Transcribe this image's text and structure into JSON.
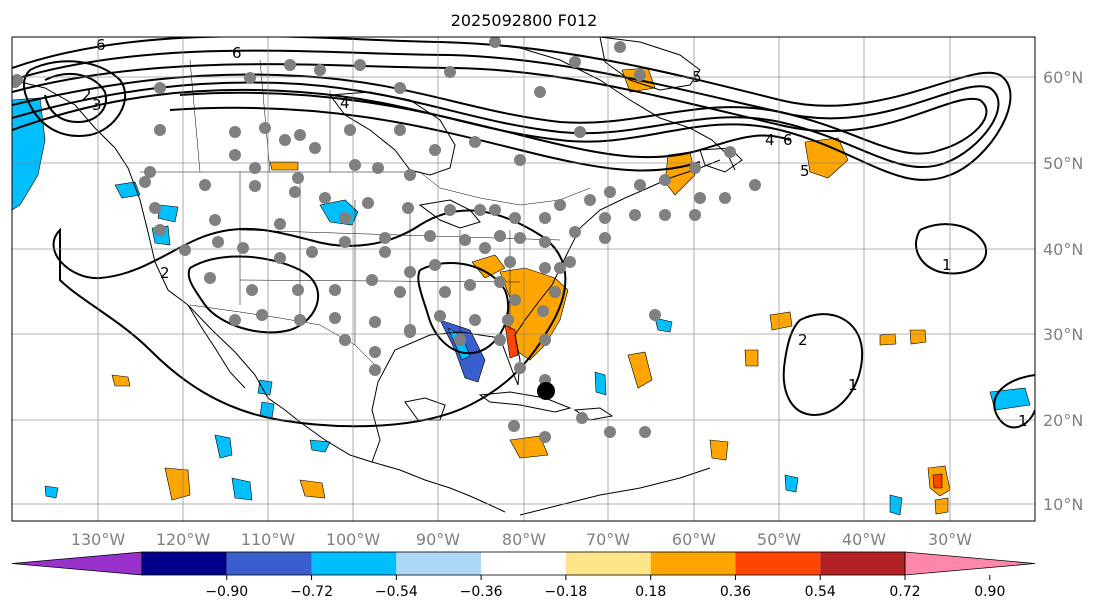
{
  "title": "2025092800 F012",
  "map": {
    "lat_labels": [
      "60°N",
      "50°N",
      "40°N",
      "30°N",
      "20°N",
      "10°N"
    ],
    "lon_labels": [
      "130°W",
      "120°W",
      "110°W",
      "100°W",
      "90°W",
      "80°W",
      "70°W",
      "60°W",
      "50°W",
      "40°W",
      "30°W"
    ],
    "contour_labels": [
      "6",
      "6",
      "2",
      "3",
      "4",
      "5",
      "4",
      "6",
      "5",
      "2",
      "1",
      "2",
      "1",
      "1"
    ]
  },
  "colorbar": {
    "ticks": [
      "−0.90",
      "−0.72",
      "−0.54",
      "−0.36",
      "−0.18",
      "0.18",
      "0.36",
      "0.54",
      "0.72",
      "0.90"
    ],
    "colors": [
      "#9932cc",
      "#00008b",
      "#3a5fcd",
      "#00bfff",
      "#add8f6",
      "#ffffff",
      "#fde68a",
      "#ffa500",
      "#ff4500",
      "#b22222",
      "#ff88aa"
    ]
  }
}
